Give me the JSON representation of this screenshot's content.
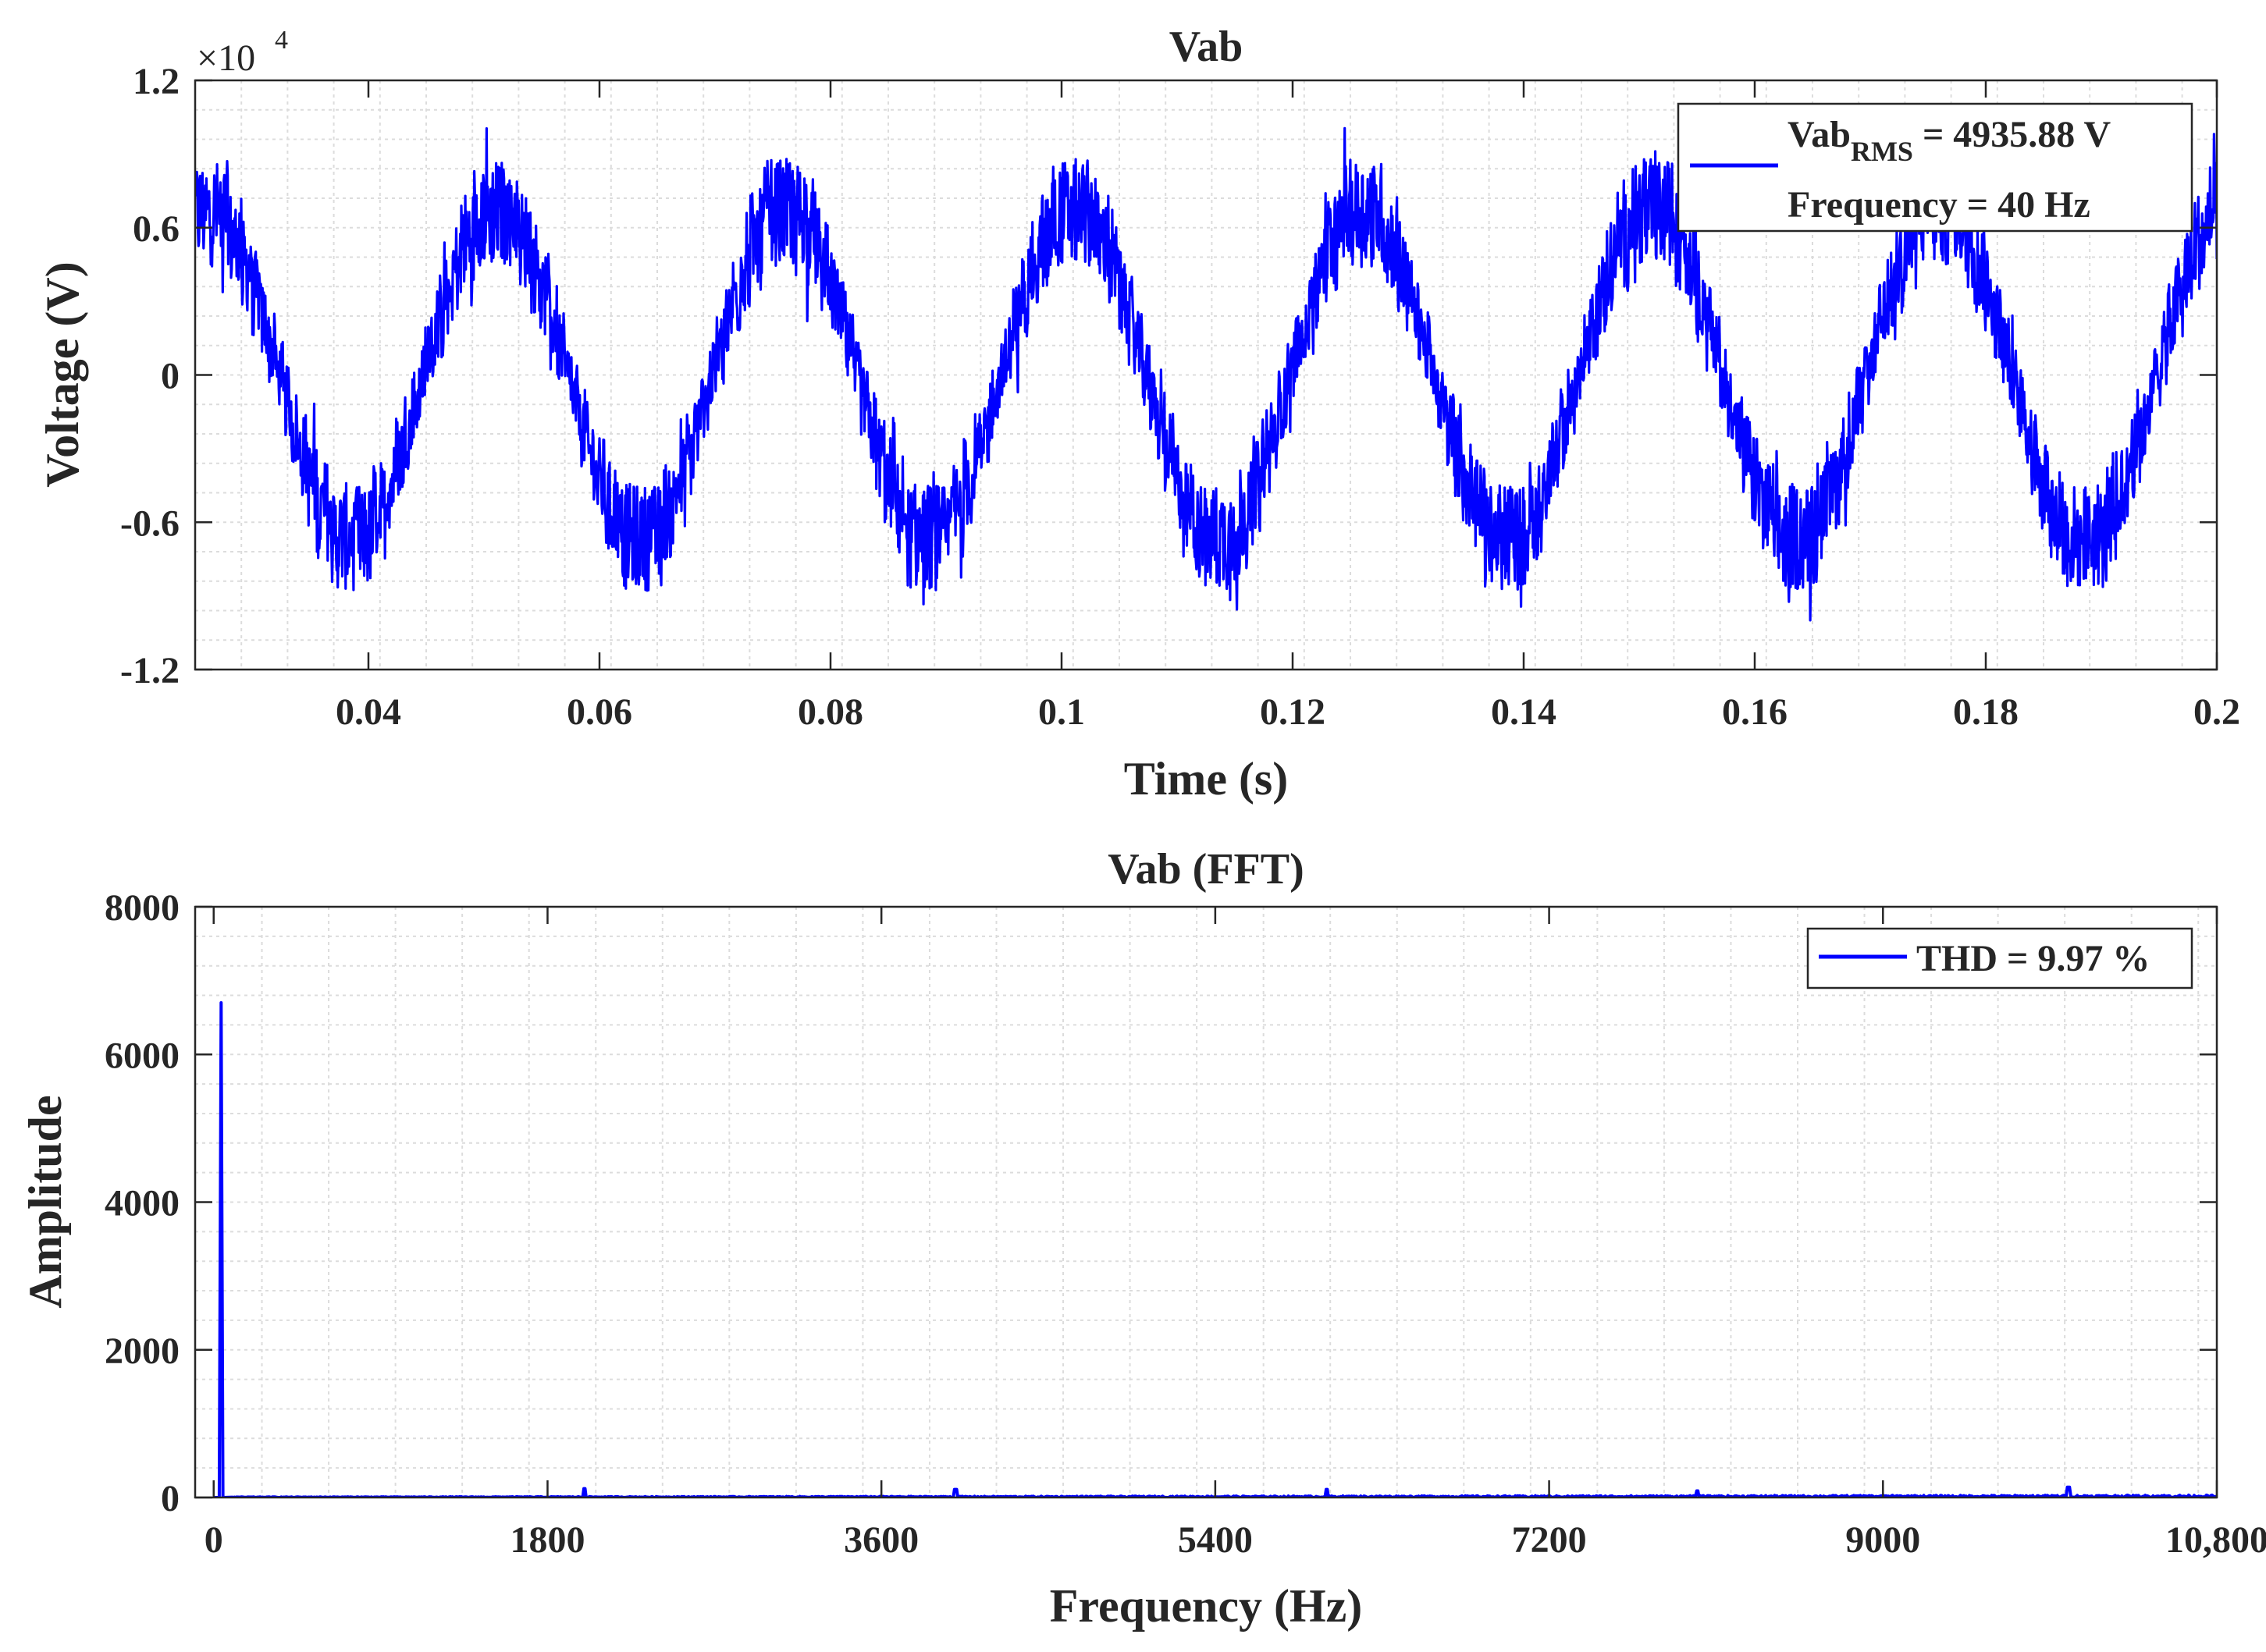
{
  "chart_data": [
    {
      "type": "line",
      "title": "Vab",
      "xlabel": "Time (s)",
      "ylabel": "Voltage (V)",
      "y_exponent_label": "×10",
      "y_exponent_power": "4",
      "xlim": [
        0.025,
        0.2
      ],
      "ylim": [
        -1.2,
        1.2
      ],
      "x_ticks": [
        0.04,
        0.06,
        0.08,
        0.1,
        0.12,
        0.14,
        0.16,
        0.18,
        0.2
      ],
      "x_tick_labels": [
        "0.04",
        "0.06",
        "0.08",
        "0.1",
        "0.12",
        "0.14",
        "0.16",
        "0.18",
        "0.2"
      ],
      "y_ticks": [
        -1.2,
        -0.6,
        0,
        0.6,
        1.2
      ],
      "y_tick_labels": [
        "-1.2",
        "-0.6",
        "0",
        "0.6",
        "1.2"
      ],
      "grid": true,
      "legend_position": "top-right",
      "legend": {
        "line1_prefix": "Vab",
        "line1_subscript": "RMS",
        "line1_suffix": " = 4935.88 V",
        "line2": "Frequency = 40 Hz"
      },
      "series": [
        {
          "color": "#0000ff",
          "signal": "pwm-stepped-sinusoid",
          "frequency_hz": 40,
          "amplitude_1e4": 0.68,
          "phase_rad": 1.31,
          "switching_ripple_1e4": 0.22,
          "peak_clip_1e4": 1.05
        }
      ]
    },
    {
      "type": "line",
      "title": "Vab (FFT)",
      "xlabel": "Frequency (Hz)",
      "ylabel": "Amplitude",
      "xlim": [
        -100,
        10800
      ],
      "ylim": [
        0,
        8000
      ],
      "x_ticks": [
        0,
        1800,
        3600,
        5400,
        7200,
        9000,
        10800
      ],
      "x_tick_labels": [
        "0",
        "1800",
        "3600",
        "5400",
        "7200",
        "9000",
        "10,800"
      ],
      "y_ticks": [
        0,
        2000,
        4000,
        6000,
        8000
      ],
      "y_tick_labels": [
        "0",
        "2000",
        "4000",
        "6000",
        "8000"
      ],
      "grid": true,
      "legend_position": "top-right",
      "legend": {
        "text": "THD = 9.97 %"
      },
      "series": [
        {
          "color": "#0000ff",
          "fundamental_hz": 40,
          "fundamental_amplitude": 6700,
          "peaks": [
            [
              2000,
              120
            ],
            [
              4000,
              110
            ],
            [
              6000,
              110
            ],
            [
              8000,
              90
            ],
            [
              10000,
              140
            ]
          ],
          "noise_floor": 25
        }
      ]
    }
  ]
}
